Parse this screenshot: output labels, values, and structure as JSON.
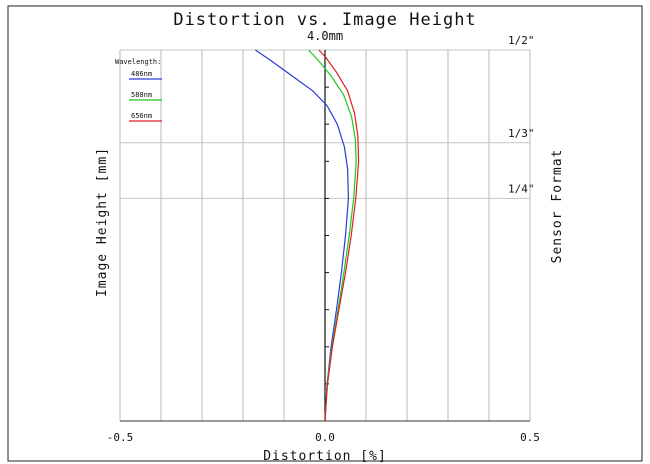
{
  "chart_data": {
    "type": "line",
    "title": "Distortion vs. Image Height",
    "subtitle": "4.0mm",
    "xlabel": "Distortion [%]",
    "ylabel": "Image Height [mm]",
    "right_label": "Sensor Format",
    "xlim": [
      -0.5,
      0.5
    ],
    "ylim": [
      0,
      1
    ],
    "x_ticks": [
      {
        "value": -0.5,
        "label": "-0.5"
      },
      {
        "value": 0.0,
        "label": "0.0"
      },
      {
        "value": 0.5,
        "label": "0.5"
      }
    ],
    "x_gridlines": [
      -0.5,
      -0.4,
      -0.3,
      -0.2,
      -0.1,
      0.0,
      0.1,
      0.2,
      0.3,
      0.4,
      0.5
    ],
    "y_minor_ticks": [
      0.1,
      0.2,
      0.3,
      0.4,
      0.5,
      0.6,
      0.7,
      0.8,
      0.9
    ],
    "sensor_formats": [
      {
        "label": "1/2\"",
        "y": 1.0
      },
      {
        "label": "1/3\"",
        "y": 0.75
      },
      {
        "label": "1/4\"",
        "y": 0.6
      }
    ],
    "legend_title": "Wavelength:",
    "legend_position": "top-left",
    "series": [
      {
        "name": "486nm",
        "color": "#2a3cd6",
        "points": [
          [
            0,
            0
          ],
          [
            0.005,
            0.1
          ],
          [
            0.015,
            0.2
          ],
          [
            0.028,
            0.3
          ],
          [
            0.04,
            0.4
          ],
          [
            0.05,
            0.5
          ],
          [
            0.057,
            0.6
          ],
          [
            0.055,
            0.68
          ],
          [
            0.047,
            0.74
          ],
          [
            0.03,
            0.8
          ],
          [
            0.005,
            0.85
          ],
          [
            -0.03,
            0.89
          ],
          [
            -0.08,
            0.93
          ],
          [
            -0.13,
            0.97
          ],
          [
            -0.17,
            1.0
          ]
        ]
      },
      {
        "name": "588nm",
        "color": "#1ec81e",
        "points": [
          [
            0,
            0
          ],
          [
            0.005,
            0.1
          ],
          [
            0.017,
            0.2
          ],
          [
            0.032,
            0.3
          ],
          [
            0.046,
            0.4
          ],
          [
            0.059,
            0.5
          ],
          [
            0.07,
            0.6
          ],
          [
            0.076,
            0.7
          ],
          [
            0.074,
            0.76
          ],
          [
            0.065,
            0.82
          ],
          [
            0.045,
            0.88
          ],
          [
            0.015,
            0.93
          ],
          [
            -0.015,
            0.97
          ],
          [
            -0.04,
            1.0
          ]
        ]
      },
      {
        "name": "656nm",
        "color": "#e02020",
        "points": [
          [
            0,
            0
          ],
          [
            0.006,
            0.1
          ],
          [
            0.018,
            0.2
          ],
          [
            0.034,
            0.3
          ],
          [
            0.05,
            0.4
          ],
          [
            0.064,
            0.5
          ],
          [
            0.075,
            0.6
          ],
          [
            0.082,
            0.7
          ],
          [
            0.08,
            0.77
          ],
          [
            0.072,
            0.83
          ],
          [
            0.055,
            0.89
          ],
          [
            0.028,
            0.94
          ],
          [
            0.002,
            0.98
          ],
          [
            -0.015,
            1.0
          ]
        ]
      }
    ]
  }
}
